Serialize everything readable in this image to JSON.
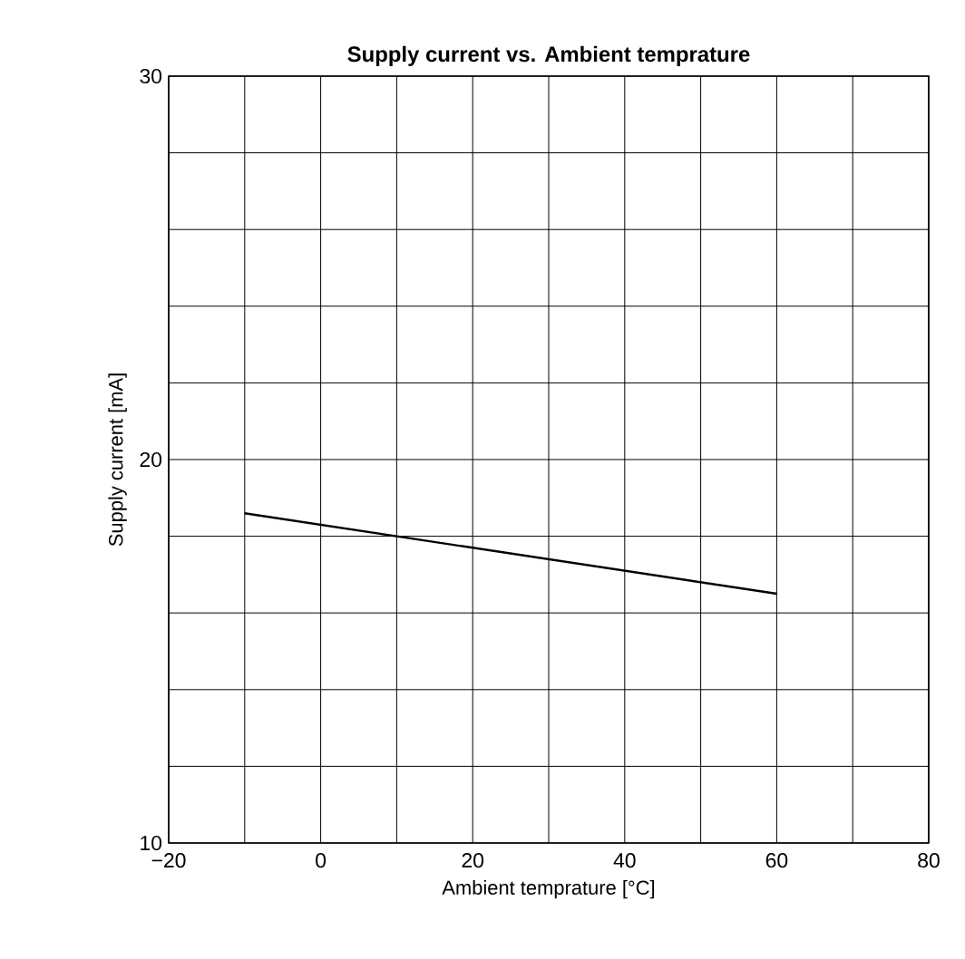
{
  "chart_data": {
    "type": "line",
    "title": "Supply current vs. Ambient temprature",
    "xlabel": "Ambient temprature [°C]",
    "ylabel": "Supply current [mA]",
    "x": [
      -10,
      60
    ],
    "series": [
      {
        "color": "#000000",
        "values": [
          18.6,
          16.5
        ]
      }
    ],
    "xlim": [
      -20,
      80
    ],
    "xticks": [
      {
        "value": -20,
        "label": "−20"
      },
      {
        "value": -10,
        "label": null
      },
      0,
      {
        "value": 10,
        "label": null
      },
      20,
      {
        "value": 30,
        "label": null
      },
      40,
      {
        "value": 50,
        "label": null
      },
      60,
      {
        "value": 70,
        "label": null
      },
      80
    ],
    "ylim": [
      10,
      30
    ],
    "yticks": [
      10,
      {
        "value": 12,
        "label": null
      },
      {
        "value": 14,
        "label": null
      },
      {
        "value": 16,
        "label": null
      },
      {
        "value": 18,
        "label": null
      },
      20,
      {
        "value": 22,
        "label": null
      },
      {
        "value": 24,
        "label": null
      },
      {
        "value": 26,
        "label": null
      },
      {
        "value": 28,
        "label": null
      },
      30
    ],
    "grid": true,
    "marker": "none",
    "line_style": "solid"
  }
}
